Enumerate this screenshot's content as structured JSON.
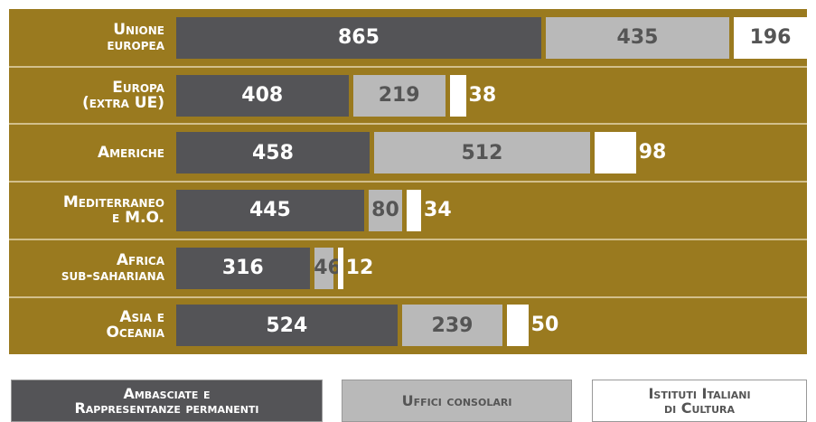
{
  "chart_data": {
    "type": "bar",
    "categories": [
      "Unione\neuropea",
      "Europa\n(extra UE)",
      "Americhe",
      "Mediterraneo\ne M.O.",
      "Africa\nsub-sahariana",
      "Asia e\nOceania"
    ],
    "series": [
      {
        "name": "Ambasciate e\nRappresentanze permanenti",
        "color": "#545457",
        "values": [
          865,
          408,
          458,
          445,
          316,
          524
        ]
      },
      {
        "name": "Uffici consolari",
        "color": "#b9b9b9",
        "values": [
          435,
          219,
          512,
          80,
          46,
          239
        ]
      },
      {
        "name": "Istituti Italiani\ndi Cultura",
        "color": "#ffffff",
        "values": [
          196,
          38,
          98,
          34,
          12,
          50
        ]
      }
    ],
    "background": "#9a7a1f"
  }
}
